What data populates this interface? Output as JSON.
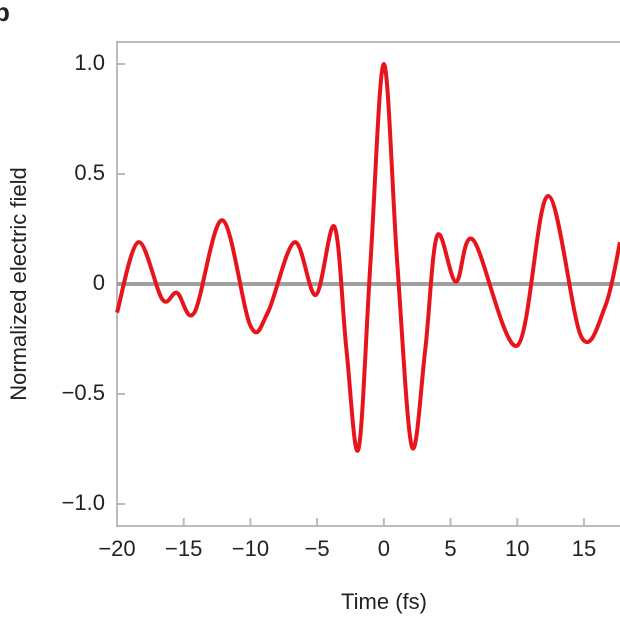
{
  "chart_data": {
    "type": "line",
    "panel_label": "b",
    "xlabel": "Time (fs)",
    "ylabel": "Normalized electric field",
    "x": [
      -20,
      -18.4,
      -16.6,
      -15.5,
      -14.2,
      -12.1,
      -10.0,
      -8.7,
      -6.7,
      -5.1,
      -3.7,
      -2.8,
      -1.9,
      -1.0,
      0,
      1.0,
      2.1,
      3.1,
      4.0,
      5.4,
      6.7,
      10.0,
      12.3,
      14.8,
      16.6,
      17.7
    ],
    "series": [
      {
        "color": "#e8141c",
        "values": [
          -0.13,
          0.19,
          -0.07,
          -0.04,
          -0.13,
          0.29,
          -0.19,
          -0.13,
          0.19,
          -0.05,
          0.26,
          -0.3,
          -0.75,
          0.1,
          1.0,
          0.1,
          -0.74,
          -0.3,
          0.22,
          0.01,
          0.2,
          -0.28,
          0.4,
          -0.24,
          -0.1,
          0.19
        ]
      }
    ],
    "hline": {
      "value": 0,
      "color": "#a0a0a0"
    },
    "xlim": [
      -20,
      17.7
    ],
    "ylim": [
      -1.1,
      1.1
    ],
    "xticks": [
      {
        "value": -20,
        "label": "−20"
      },
      {
        "value": -15,
        "label": "−15"
      },
      {
        "value": -10,
        "label": "−10"
      },
      {
        "value": -5,
        "label": "−5"
      },
      0,
      5,
      10,
      15
    ],
    "yticks": [
      {
        "value": 1.0,
        "label": "1.0"
      },
      {
        "value": 0.5,
        "label": "0.5"
      },
      0,
      {
        "value": -0.5,
        "label": "−0.5"
      },
      {
        "value": -1.0,
        "label": "−1.0"
      }
    ]
  }
}
